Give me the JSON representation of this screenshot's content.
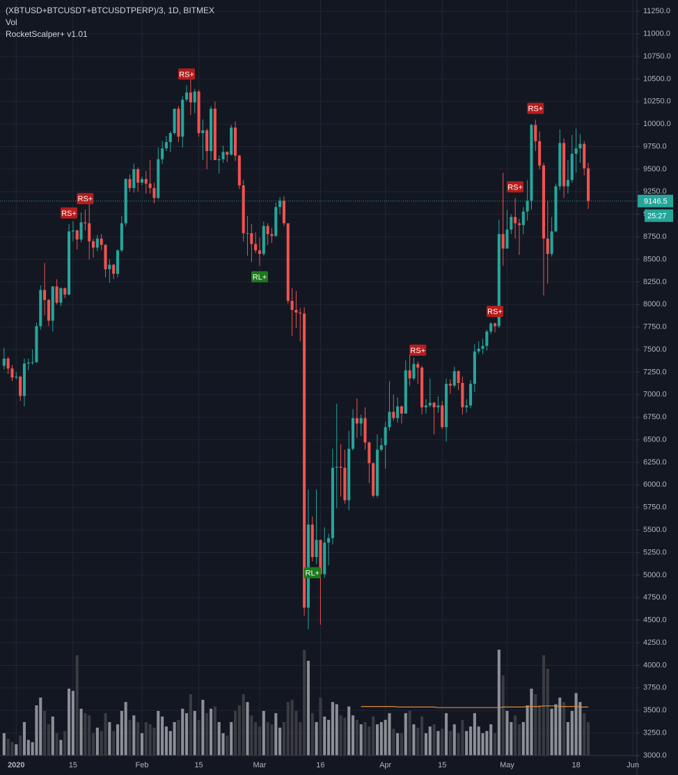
{
  "chart_data": {
    "type": "candlestick",
    "title": "(XBTUSD+BTCUSDT+BTCUSDTPERP)/3, 1D, BITMEX",
    "indicators": [
      "Vol",
      "RocketScalper+ v1.01"
    ],
    "countdown": "25:27",
    "up_color": "#26a69a",
    "down_color": "#ef5350",
    "x": [
      "2019-12-29",
      "2019-12-30",
      "2019-12-31",
      "2020-01-01",
      "2020-01-02",
      "2020-01-03",
      "2020-01-04",
      "2020-01-05",
      "2020-01-06",
      "2020-01-07",
      "2020-01-08",
      "2020-01-09",
      "2020-01-10",
      "2020-01-11",
      "2020-01-12",
      "2020-01-13",
      "2020-01-14",
      "2020-01-15",
      "2020-01-16",
      "2020-01-17",
      "2020-01-18",
      "2020-01-19",
      "2020-01-20",
      "2020-01-21",
      "2020-01-22",
      "2020-01-23",
      "2020-01-24",
      "2020-01-25",
      "2020-01-26",
      "2020-01-27",
      "2020-01-28",
      "2020-01-29",
      "2020-01-30",
      "2020-01-31",
      "2020-02-01",
      "2020-02-02",
      "2020-02-03",
      "2020-02-04",
      "2020-02-05",
      "2020-02-06",
      "2020-02-07",
      "2020-02-08",
      "2020-02-09",
      "2020-02-10",
      "2020-02-11",
      "2020-02-12",
      "2020-02-13",
      "2020-02-14",
      "2020-02-15",
      "2020-02-16",
      "2020-02-17",
      "2020-02-18",
      "2020-02-19",
      "2020-02-20",
      "2020-02-21",
      "2020-02-22",
      "2020-02-23",
      "2020-02-24",
      "2020-02-25",
      "2020-02-26",
      "2020-02-27",
      "2020-02-28",
      "2020-02-29",
      "2020-03-01",
      "2020-03-02",
      "2020-03-03",
      "2020-03-04",
      "2020-03-05",
      "2020-03-06",
      "2020-03-07",
      "2020-03-08",
      "2020-03-09",
      "2020-03-10",
      "2020-03-11",
      "2020-03-12",
      "2020-03-13",
      "2020-03-14",
      "2020-03-15",
      "2020-03-16",
      "2020-03-17",
      "2020-03-18",
      "2020-03-19",
      "2020-03-20",
      "2020-03-21",
      "2020-03-22",
      "2020-03-23",
      "2020-03-24",
      "2020-03-25",
      "2020-03-26",
      "2020-03-27",
      "2020-03-28",
      "2020-03-29",
      "2020-03-30",
      "2020-03-31",
      "2020-04-01",
      "2020-04-02",
      "2020-04-03",
      "2020-04-04",
      "2020-04-05",
      "2020-04-06",
      "2020-04-07",
      "2020-04-08",
      "2020-04-09",
      "2020-04-10",
      "2020-04-11",
      "2020-04-12",
      "2020-04-13",
      "2020-04-14",
      "2020-04-15",
      "2020-04-16",
      "2020-04-17",
      "2020-04-18",
      "2020-04-19",
      "2020-04-20",
      "2020-04-21",
      "2020-04-22",
      "2020-04-23",
      "2020-04-24",
      "2020-04-25",
      "2020-04-26",
      "2020-04-27",
      "2020-04-28",
      "2020-04-29",
      "2020-04-30",
      "2020-05-01",
      "2020-05-02",
      "2020-05-03",
      "2020-05-04",
      "2020-05-05",
      "2020-05-06",
      "2020-05-07",
      "2020-05-08",
      "2020-05-09",
      "2020-05-10",
      "2020-05-11",
      "2020-05-12",
      "2020-05-13",
      "2020-05-14",
      "2020-05-15",
      "2020-05-16",
      "2020-05-17",
      "2020-05-18",
      "2020-05-19",
      "2020-05-20",
      "2020-05-21"
    ],
    "open": [
      7320,
      7400,
      7290,
      7190,
      7200,
      6985,
      7345,
      7355,
      7360,
      7760,
      8160,
      8050,
      7820,
      8200,
      8020,
      8180,
      8110,
      8810,
      8820,
      8720,
      8910,
      8900,
      8700,
      8630,
      8730,
      8660,
      8390,
      8440,
      8340,
      8600,
      8900,
      9390,
      9290,
      9500,
      9350,
      9390,
      9340,
      9290,
      9180,
      9610,
      9730,
      9800,
      9900,
      10170,
      9860,
      10270,
      10350,
      10240,
      10360,
      9900,
      9930,
      9700,
      10170,
      9600,
      9610,
      9690,
      9660,
      9960,
      9650,
      9320,
      8790,
      8790,
      8670,
      8600,
      8560,
      8870,
      8780,
      8760,
      9080,
      9150,
      8900,
      8040,
      7940,
      7910,
      7900,
      4640,
      5560,
      5200,
      5390,
      5010,
      5360,
      5410,
      6190,
      6200,
      6190,
      5830,
      6400,
      6740,
      6680,
      6740,
      6470,
      6240,
      5880,
      6390,
      6440,
      6640,
      6810,
      6740,
      6870,
      6790,
      7270,
      7180,
      7340,
      7300,
      6860,
      6880,
      6910,
      6860,
      6880,
      6640,
      7120,
      7100,
      7260,
      7130,
      6860,
      6880,
      7120,
      7480,
      7510,
      7540,
      7700,
      7790,
      7760,
      8780,
      8620,
      8830,
      8970,
      8900,
      8880,
      9030,
      9150,
      9990,
      9810,
      9540,
      8730,
      8560,
      8810,
      9310,
      9790,
      9310,
      9380,
      9670,
      9730,
      9780,
      9510
    ],
    "high": [
      7520,
      7420,
      7330,
      7250,
      7210,
      7400,
      7400,
      7500,
      7800,
      8210,
      8460,
      8060,
      8200,
      8280,
      8190,
      8190,
      8890,
      8920,
      8830,
      9020,
      9050,
      9200,
      8730,
      8770,
      8780,
      8670,
      8500,
      8450,
      8610,
      8980,
      9400,
      9440,
      9560,
      9520,
      9420,
      9480,
      9600,
      9350,
      9740,
      9810,
      9870,
      9920,
      10170,
      10200,
      10310,
      10430,
      10530,
      10390,
      10380,
      10050,
      9950,
      10200,
      10250,
      9650,
      9760,
      9700,
      9990,
      10030,
      9660,
      9380,
      8980,
      8890,
      8800,
      8740,
      8920,
      8900,
      8850,
      9130,
      9190,
      9200,
      8900,
      8180,
      8150,
      7960,
      7970,
      5950,
      5650,
      5950,
      5390,
      5530,
      5460,
      6400,
      6900,
      6450,
      6390,
      6600,
      6840,
      6960,
      6780,
      6860,
      6480,
      6250,
      6560,
      6520,
      6700,
      7150,
      7000,
      6970,
      6880,
      7380,
      7460,
      7410,
      7370,
      7320,
      6950,
      7180,
      6920,
      6980,
      6930,
      7180,
      7170,
      7310,
      7270,
      7200,
      6950,
      7160,
      7560,
      7590,
      7620,
      7720,
      7800,
      7800,
      8940,
      9460,
      9050,
      9000,
      9180,
      8950,
      9080,
      9380,
      10000,
      10050,
      9920,
      9570,
      9150,
      8970,
      9340,
      9940,
      9840,
      9600,
      9880,
      9950,
      9890,
      9810,
      9570
    ],
    "low": [
      7280,
      7230,
      7150,
      7170,
      6930,
      6870,
      7270,
      7330,
      7350,
      7720,
      7880,
      7760,
      7700,
      8000,
      7980,
      8070,
      8100,
      8700,
      8610,
      8690,
      8820,
      8500,
      8520,
      8590,
      8600,
      8300,
      8240,
      8280,
      8300,
      8580,
      8870,
      9250,
      9240,
      9250,
      9320,
      9230,
      9230,
      9120,
      9170,
      9560,
      9700,
      9690,
      9880,
      9800,
      9740,
      10250,
      10100,
      10120,
      9860,
      9600,
      9500,
      9600,
      9600,
      9450,
      9570,
      9580,
      9650,
      9590,
      9280,
      8700,
      8540,
      8470,
      8570,
      8430,
      8540,
      8660,
      8680,
      8750,
      9000,
      8870,
      8010,
      7650,
      7740,
      7590,
      4550,
      4400,
      5150,
      5120,
      4450,
      4970,
      5110,
      5340,
      5740,
      5870,
      5790,
      5720,
      6380,
      6520,
      6540,
      6390,
      6020,
      5860,
      5860,
      6370,
      6180,
      6600,
      6710,
      6690,
      6680,
      6790,
      7100,
      7160,
      7120,
      6780,
      6790,
      6860,
      6560,
      6800,
      6620,
      6480,
      7010,
      7080,
      7050,
      6780,
      6800,
      6850,
      7030,
      7450,
      7450,
      7490,
      7670,
      7690,
      7740,
      8430,
      8620,
      8780,
      8730,
      8550,
      8780,
      8930,
      9050,
      9700,
      9500,
      8100,
      8230,
      8530,
      8800,
      9270,
      9180,
      9230,
      9350,
      9460,
      9570,
      9430,
      9060
    ],
    "close": [
      7400,
      7290,
      7190,
      7200,
      6985,
      7345,
      7355,
      7360,
      7760,
      8160,
      8050,
      7820,
      8200,
      8020,
      8180,
      8110,
      8810,
      8820,
      8720,
      8910,
      8900,
      8700,
      8630,
      8730,
      8660,
      8390,
      8440,
      8340,
      8600,
      8900,
      9390,
      9290,
      9500,
      9350,
      9390,
      9340,
      9290,
      9180,
      9610,
      9730,
      9800,
      9900,
      10170,
      9860,
      10270,
      10350,
      10240,
      10360,
      9900,
      9930,
      9700,
      10170,
      9600,
      9610,
      9690,
      9660,
      9960,
      9650,
      9320,
      8790,
      8790,
      8670,
      8600,
      8560,
      8870,
      8780,
      8760,
      9080,
      9150,
      8900,
      8040,
      7940,
      7910,
      7900,
      4640,
      5560,
      5200,
      5390,
      5010,
      5360,
      5410,
      6190,
      6200,
      6190,
      5830,
      6400,
      6740,
      6680,
      6740,
      6470,
      6240,
      5880,
      6390,
      6440,
      6640,
      6810,
      6740,
      6870,
      6790,
      7270,
      7180,
      7340,
      7300,
      6860,
      6880,
      6910,
      6860,
      6880,
      6640,
      7120,
      7100,
      7260,
      7130,
      6860,
      6880,
      7120,
      7480,
      7510,
      7540,
      7700,
      7790,
      7760,
      8780,
      8620,
      8830,
      8970,
      8900,
      8880,
      9030,
      9150,
      9990,
      9810,
      9540,
      8730,
      8560,
      8810,
      9310,
      9790,
      9310,
      9380,
      9670,
      9730,
      9780,
      9510,
      9146.5
    ],
    "volume": {
      "ylim": [
        0,
        100
      ],
      "up_color": "#8d8f96",
      "down_color": "#3a3c42",
      "ma_color": "#e08a3c",
      "values": [
        20,
        15,
        12,
        10,
        18,
        30,
        14,
        12,
        45,
        52,
        40,
        28,
        35,
        20,
        14,
        22,
        60,
        58,
        90,
        42,
        38,
        36,
        20,
        25,
        22,
        38,
        30,
        22,
        28,
        40,
        48,
        32,
        36,
        30,
        20,
        30,
        28,
        25,
        40,
        35,
        26,
        22,
        30,
        32,
        42,
        38,
        55,
        40,
        32,
        50,
        38,
        42,
        44,
        30,
        20,
        18,
        30,
        40,
        45,
        55,
        48,
        36,
        30,
        26,
        40,
        30,
        28,
        38,
        25,
        30,
        48,
        50,
        40,
        30,
        95,
        85,
        38,
        30,
        52,
        35,
        32,
        48,
        46,
        36,
        34,
        44,
        36,
        32,
        28,
        30,
        26,
        35,
        28,
        30,
        32,
        38,
        24,
        20,
        20,
        38,
        40,
        28,
        25,
        35,
        20,
        26,
        28,
        22,
        24,
        38,
        22,
        28,
        20,
        32,
        22,
        26,
        38,
        26,
        20,
        22,
        28,
        20,
        95,
        72,
        40,
        30,
        36,
        28,
        30,
        45,
        60,
        55,
        45,
        90,
        78,
        42,
        46,
        52,
        48,
        30,
        40,
        56,
        48,
        38,
        30
      ],
      "ma": [
        null,
        null,
        null,
        null,
        null,
        null,
        null,
        null,
        null,
        null,
        null,
        null,
        null,
        null,
        null,
        null,
        null,
        null,
        null,
        null,
        null,
        null,
        null,
        null,
        null,
        null,
        null,
        null,
        null,
        null,
        null,
        null,
        null,
        null,
        null,
        null,
        null,
        null,
        null,
        null,
        null,
        null,
        null,
        null,
        null,
        null,
        null,
        null,
        null,
        null,
        null,
        null,
        null,
        null,
        null,
        null,
        null,
        null,
        null,
        null,
        null,
        null,
        null,
        null,
        null,
        null,
        null,
        null,
        null,
        null,
        null,
        null,
        null,
        null,
        null,
        null,
        null,
        null,
        null,
        null,
        null,
        null,
        null,
        null,
        null,
        null,
        null,
        null,
        44,
        44,
        44,
        44,
        44,
        44,
        44,
        44,
        44,
        43.5,
        43.5,
        43.5,
        43.5,
        43.5,
        43.5,
        43.5,
        43.5,
        43.5,
        43.5,
        43,
        43,
        43,
        43,
        43,
        43,
        43,
        43,
        43,
        43,
        43,
        43,
        43,
        43,
        43,
        43,
        43.5,
        43.5,
        43.5,
        43.5,
        43.5,
        43.5,
        44,
        44,
        44,
        44,
        44.5,
        44.5,
        44.5,
        44.5,
        44,
        44,
        44,
        44,
        44,
        43.5,
        43.5,
        43.5
      ]
    },
    "signals": [
      {
        "label": "RS+",
        "x": "2020-01-14",
        "side": "short"
      },
      {
        "label": "RS+",
        "x": "2020-01-18",
        "side": "short"
      },
      {
        "label": "RS+",
        "x": "2020-02-12",
        "side": "short"
      },
      {
        "label": "RL+",
        "x": "2020-03-01",
        "side": "long"
      },
      {
        "label": "RL+",
        "x": "2020-03-14",
        "side": "long"
      },
      {
        "label": "RS+",
        "x": "2020-04-09",
        "side": "short"
      },
      {
        "label": "RS+",
        "x": "2020-04-28",
        "side": "short"
      },
      {
        "label": "RS+",
        "x": "2020-05-03",
        "side": "short"
      },
      {
        "label": "RS+",
        "x": "2020-05-08",
        "side": "short"
      }
    ],
    "signal_colors": {
      "short": "#b71c1c",
      "long": "#1b7a1b"
    },
    "xlim": [
      "2019-12-28",
      "2020-06-02"
    ],
    "xticks": [
      {
        "value": "2020-01-01",
        "label": "2020"
      },
      {
        "value": "2020-01-15",
        "label": "15"
      },
      {
        "value": "2020-02-01",
        "label": "Feb"
      },
      {
        "value": "2020-02-15",
        "label": "15"
      },
      {
        "value": "2020-03-01",
        "label": "Mar"
      },
      {
        "value": "2020-03-16",
        "label": "16"
      },
      {
        "value": "2020-04-01",
        "label": "Apr"
      },
      {
        "value": "2020-04-15",
        "label": "15"
      },
      {
        "value": "2020-05-01",
        "label": "May"
      },
      {
        "value": "2020-05-18",
        "label": "18"
      },
      {
        "value": "2020-06-01",
        "label": "Jun"
      }
    ],
    "ylim": [
      3000,
      11375
    ],
    "yticks": [
      {
        "value": 11250,
        "label": "11250.0"
      },
      {
        "value": 11000,
        "label": "11000.0"
      },
      {
        "value": 10750,
        "label": "10750.0"
      },
      {
        "value": 10500,
        "label": "10500.0"
      },
      {
        "value": 10250,
        "label": "10250.0"
      },
      {
        "value": 10000,
        "label": "10000.0"
      },
      {
        "value": 9750,
        "label": "9750.0"
      },
      {
        "value": 9500,
        "label": "9500.0"
      },
      {
        "value": 9250,
        "label": "9250.0"
      },
      {
        "value": 9000,
        "label": "9000.0"
      },
      {
        "value": 8750,
        "label": "8750.0"
      },
      {
        "value": 8500,
        "label": "8500.0"
      },
      {
        "value": 8250,
        "label": "8250.0"
      },
      {
        "value": 8000,
        "label": "8000.0"
      },
      {
        "value": 7750,
        "label": "7750.0"
      },
      {
        "value": 7500,
        "label": "7500.0"
      },
      {
        "value": 7250,
        "label": "7250.0"
      },
      {
        "value": 7000,
        "label": "7000.0"
      },
      {
        "value": 6750,
        "label": "6750.0"
      },
      {
        "value": 6500,
        "label": "6500.0"
      },
      {
        "value": 6250,
        "label": "6250.0"
      },
      {
        "value": 6000,
        "label": "6000.0"
      },
      {
        "value": 5750,
        "label": "5750.0"
      },
      {
        "value": 5500,
        "label": "5500.0"
      },
      {
        "value": 5250,
        "label": "5250.0"
      },
      {
        "value": 5000,
        "label": "5000.0"
      },
      {
        "value": 4750,
        "label": "4750.0"
      },
      {
        "value": 4500,
        "label": "4500.0"
      },
      {
        "value": 4250,
        "label": "4250.0"
      },
      {
        "value": 4000,
        "label": "4000.0"
      },
      {
        "value": 3750,
        "label": "3750.0"
      },
      {
        "value": 3500,
        "label": "3500.0"
      },
      {
        "value": 3250,
        "label": "3250.0"
      },
      {
        "value": 3000,
        "label": "3000.0"
      }
    ],
    "grid": true
  }
}
